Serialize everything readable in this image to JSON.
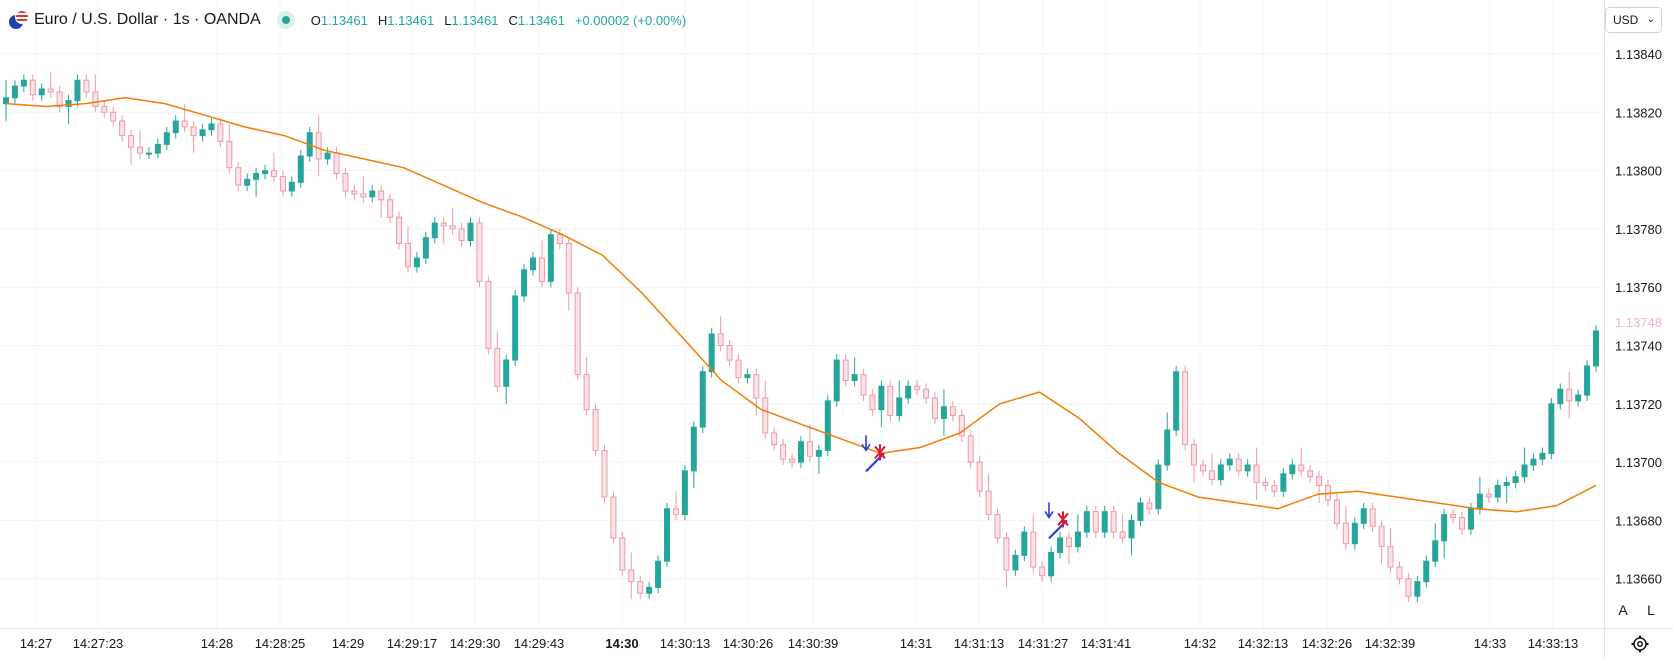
{
  "legend": {
    "symbol": "Euro / U.S. Dollar · 1s · OANDA",
    "open_label": "O",
    "open": "1.13461",
    "high_label": "H",
    "high": "1.13461",
    "low_label": "L",
    "low": "1.13461",
    "close_label": "C",
    "close": "1.13461",
    "change": "+0.00002 (+0.00%)"
  },
  "price_scale": {
    "currency": "USD",
    "current_price_label": "1.13748",
    "auto_button": "A",
    "log_button": "L"
  },
  "icons": {
    "flag": "eurusd-flag-icon",
    "status": "market-status-dot-icon",
    "dropdown": "chevron-down-icon",
    "settings": "gear-icon",
    "signal_arrow": "down-arrow-signal-icon",
    "signal_cross": "cross-marker-icon"
  },
  "colors": {
    "up": "#26a69a",
    "down": "#ef9aa6",
    "moving_average": "#f57c00",
    "current_price": "#f5b4bf",
    "signal_arrow": "#2e3bd6",
    "signal_cross": "#e0142c",
    "grid": "#f0f3fa"
  },
  "chart_data": {
    "type": "candlestick",
    "y_range": [
      1.13648,
      1.13852
    ],
    "y_ticks": [
      "1.13840",
      "1.13820",
      "1.13800",
      "1.13780",
      "1.13760",
      "1.13740",
      "1.13720",
      "1.13700",
      "1.13680",
      "1.13660"
    ],
    "x_ticks": [
      {
        "label": "14:27",
        "bold": false
      },
      {
        "label": "14:27:23",
        "bold": false
      },
      {
        "label": "14:28",
        "bold": false
      },
      {
        "label": "14:28:25",
        "bold": false
      },
      {
        "label": "14:29",
        "bold": false
      },
      {
        "label": "14:29:17",
        "bold": false
      },
      {
        "label": "14:29:30",
        "bold": false
      },
      {
        "label": "14:29:43",
        "bold": false
      },
      {
        "label": "14:30",
        "bold": true
      },
      {
        "label": "14:30:13",
        "bold": false
      },
      {
        "label": "14:30:26",
        "bold": false
      },
      {
        "label": "14:30:39",
        "bold": false
      },
      {
        "label": "14:31",
        "bold": false
      },
      {
        "label": "14:31:13",
        "bold": false
      },
      {
        "label": "14:31:27",
        "bold": false
      },
      {
        "label": "14:31:41",
        "bold": false
      },
      {
        "label": "14:32",
        "bold": false
      },
      {
        "label": "14:32:13",
        "bold": false
      },
      {
        "label": "14:32:26",
        "bold": false
      },
      {
        "label": "14:32:39",
        "bold": false
      },
      {
        "label": "14:33",
        "bold": false
      },
      {
        "label": "14:33:13",
        "bold": false
      }
    ],
    "candles_close": [
      1.13825,
      1.13829,
      1.13831,
      1.13826,
      1.13828,
      1.13827,
      1.13822,
      1.13824,
      1.13831,
      1.13827,
      1.13822,
      1.1382,
      1.13817,
      1.13812,
      1.13808,
      1.13806,
      1.13806,
      1.13809,
      1.13813,
      1.13817,
      1.13815,
      1.13812,
      1.13814,
      1.13816,
      1.1381,
      1.13801,
      1.13795,
      1.13797,
      1.13799,
      1.138,
      1.13798,
      1.13793,
      1.13796,
      1.13805,
      1.13813,
      1.13804,
      1.13806,
      1.13799,
      1.13793,
      1.13792,
      1.13791,
      1.13793,
      1.1379,
      1.13784,
      1.13775,
      1.13767,
      1.1377,
      1.13777,
      1.13782,
      1.13781,
      1.1378,
      1.13776,
      1.13782,
      1.13762,
      1.13739,
      1.13726,
      1.13735,
      1.13757,
      1.13766,
      1.1377,
      1.13762,
      1.13778,
      1.13775,
      1.13758,
      1.1373,
      1.13718,
      1.13704,
      1.13688,
      1.13674,
      1.13663,
      1.13659,
      1.13655,
      1.13657,
      1.13666,
      1.13684,
      1.13682,
      1.13697,
      1.13712,
      1.13731,
      1.13744,
      1.1374,
      1.13735,
      1.13729,
      1.1373,
      1.13722,
      1.1371,
      1.13706,
      1.13701,
      1.137,
      1.13707,
      1.13702,
      1.13704,
      1.13721,
      1.13735,
      1.13728,
      1.1373,
      1.13723,
      1.13718,
      1.13726,
      1.13716,
      1.13722,
      1.13726,
      1.13725,
      1.13722,
      1.13715,
      1.13719,
      1.13716,
      1.13709,
      1.137,
      1.1369,
      1.13682,
      1.13674,
      1.13663,
      1.13668,
      1.13676,
      1.13664,
      1.13661,
      1.13669,
      1.13674,
      1.13671,
      1.13676,
      1.13683,
      1.13676,
      1.13683,
      1.13676,
      1.13674,
      1.1368,
      1.13686,
      1.13684,
      1.13699,
      1.13711,
      1.13731,
      1.13706,
      1.13699,
      1.13697,
      1.13694,
      1.13699,
      1.13701,
      1.13697,
      1.13699,
      1.13693,
      1.13692,
      1.1369,
      1.13696,
      1.13699,
      1.13697,
      1.13695,
      1.13692,
      1.13687,
      1.13679,
      1.13672,
      1.13679,
      1.13684,
      1.13678,
      1.13671,
      1.13664,
      1.1366,
      1.13654,
      1.13659,
      1.13666,
      1.13673,
      1.13682,
      1.13681,
      1.13677,
      1.13684,
      1.13689,
      1.13688,
      1.13692,
      1.13693,
      1.13695,
      1.13699,
      1.13701,
      1.13703,
      1.1372,
      1.13725,
      1.13721,
      1.13723,
      1.13733,
      1.13745
    ],
    "moving_average": [
      [
        1.13823,
        1.13822,
        1.13823,
        1.13825,
        1.13823,
        1.13819,
        1.13815,
        1.13812,
        1.13807,
        1.13804,
        1.13801,
        1.13795,
        1.13789,
        1.13784,
        1.13778,
        1.13771,
        1.13758,
        1.13743,
        1.13728,
        1.13718,
        1.13713,
        1.13708,
        1.13703,
        1.13705,
        1.1371,
        1.1372,
        1.13724,
        1.13715,
        1.13703,
        1.13693,
        1.13688,
        1.13686,
        1.13684,
        1.13689,
        1.1369,
        1.13688,
        1.13686,
        1.13684,
        1.13683,
        1.13685,
        1.13692
      ]
    ],
    "signals": [
      {
        "type": "sell_arrow_with_cross",
        "price": 1.13703
      },
      {
        "type": "sell_arrow_with_cross",
        "price": 1.1368
      }
    ]
  }
}
